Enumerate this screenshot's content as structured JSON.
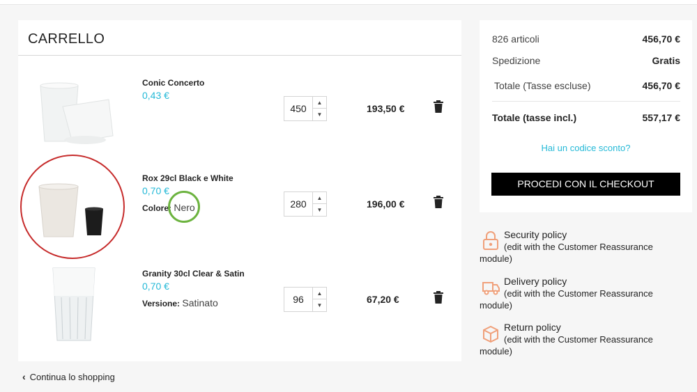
{
  "cart": {
    "title": "CARRELLO",
    "items": [
      {
        "name": "Conic Concerto",
        "price": "0,43 €",
        "quantity": "450",
        "total": "193,50 €",
        "attr_label": "",
        "attr_value": ""
      },
      {
        "name": "Rox 29cl Black e White",
        "price": "0,70 €",
        "quantity": "280",
        "total": "196,00 €",
        "attr_label": "Colore:",
        "attr_value": "Nero"
      },
      {
        "name": "Granity 30cl Clear & Satin",
        "price": "0,70 €",
        "quantity": "96",
        "total": "67,20 €",
        "attr_label": "Versione:",
        "attr_value": "Satinato"
      }
    ],
    "continue_label": "Continua lo shopping"
  },
  "summary": {
    "articles_label": "826 articoli",
    "articles_value": "456,70 €",
    "shipping_label": "Spedizione",
    "shipping_value": "Gratis",
    "subtotal_label": "Totale (Tasse escluse)",
    "subtotal_value": "456,70 €",
    "total_label": "Totale (tasse incl.)",
    "total_value": "557,17 €",
    "promo_label": "Hai un codice sconto?",
    "checkout_label": "PROCEDI CON IL CHECKOUT"
  },
  "reassurance": [
    {
      "title": "Security policy",
      "desc": "(edit with the Customer Reassurance module)",
      "icon": "lock-icon"
    },
    {
      "title": "Delivery policy",
      "desc": "(edit with the Customer Reassurance module)",
      "icon": "truck-icon"
    },
    {
      "title": "Return policy",
      "desc": "(edit with the Customer Reassurance module)",
      "icon": "return-box-icon"
    }
  ],
  "colors": {
    "accent": "#24b9d7",
    "checkout": "#000000",
    "highlight_red": "#c62a2a",
    "highlight_green": "#6cb33f"
  }
}
